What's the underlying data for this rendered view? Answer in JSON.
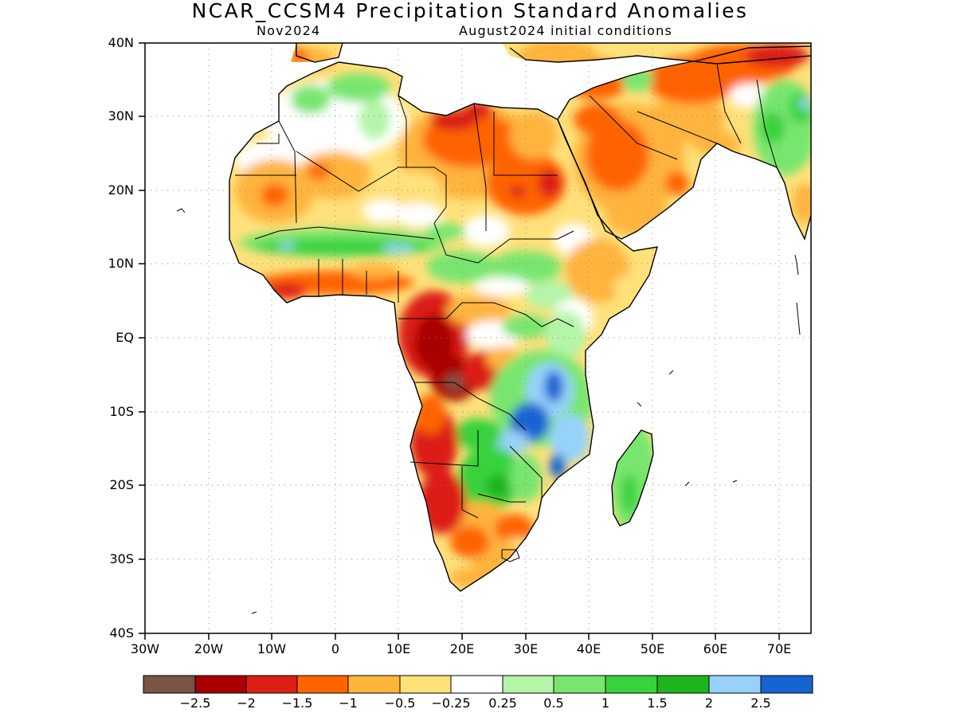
{
  "title": "NCAR_CCSM4 Precipitation Standard Anomalies",
  "subtitle_left": "Nov2024",
  "subtitle_right": "August2024 initial conditions",
  "lat_labels": [
    "40N",
    "30N",
    "20N",
    "10N",
    "EQ",
    "10S",
    "20S",
    "30S",
    "40S"
  ],
  "lon_labels": [
    "30W",
    "20W",
    "10W",
    "0",
    "10E",
    "20E",
    "30E",
    "40E",
    "50E",
    "60E",
    "70E"
  ],
  "colorbar": {
    "labels": [
      "−2.5",
      "−2",
      "−1.5",
      "−1",
      "−0.5",
      "−0.25",
      "0.25",
      "0.5",
      "1",
      "1.5",
      "2",
      "2.5"
    ],
    "colors": [
      "#7a5446",
      "#a80000",
      "#dc1e14",
      "#ff6400",
      "#ffb43c",
      "#ffe17a",
      "#ffffff",
      "#b4f5aa",
      "#78e66e",
      "#37d23c",
      "#1eb41e",
      "#96d2fa",
      "#1464d2"
    ]
  },
  "map": {
    "lat_range": [
      -40,
      40
    ],
    "lon_range": [
      -30,
      75
    ],
    "grid": "dotted",
    "projection": "lat-lon"
  }
}
